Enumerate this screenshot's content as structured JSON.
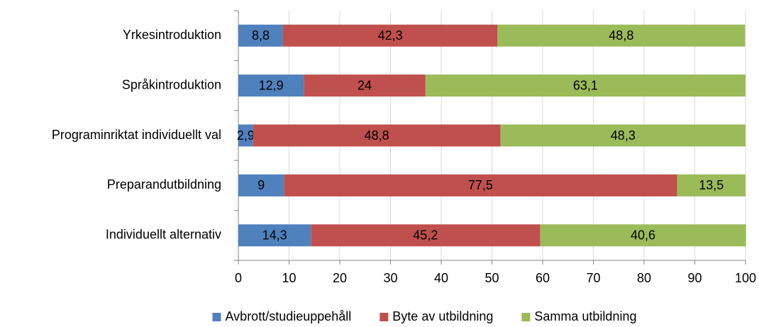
{
  "chart_data": {
    "type": "bar",
    "orientation": "horizontal",
    "stacked": true,
    "categories": [
      "Yrkesintroduktion",
      "Språkintroduktion",
      "Programinriktat individuellt val",
      "Preparandutbildning",
      "Individuellt alternativ"
    ],
    "series": [
      {
        "name": "Avbrott/studieuppehåll",
        "color": "#4f81bd",
        "values": [
          8.8,
          12.9,
          2.9,
          9,
          14.3
        ],
        "value_labels": [
          "8,8",
          "12,9",
          "2,9",
          "9",
          "14,3"
        ]
      },
      {
        "name": "Byte av utbildning",
        "color": "#c0504d",
        "values": [
          42.3,
          24,
          48.8,
          77.5,
          45.2
        ],
        "value_labels": [
          "42,3",
          "24",
          "48,8",
          "77,5",
          "45,2"
        ]
      },
      {
        "name": "Samma utbildning",
        "color": "#9bbb59",
        "values": [
          48.8,
          63.1,
          48.3,
          13.5,
          40.6
        ],
        "value_labels": [
          "48,8",
          "63,1",
          "48,3",
          "13,5",
          "40,6"
        ]
      }
    ],
    "xlim": [
      0,
      100
    ],
    "xticks": [
      0,
      10,
      20,
      30,
      40,
      50,
      60,
      70,
      80,
      90,
      100
    ],
    "grid": true,
    "legend": "bottom"
  }
}
